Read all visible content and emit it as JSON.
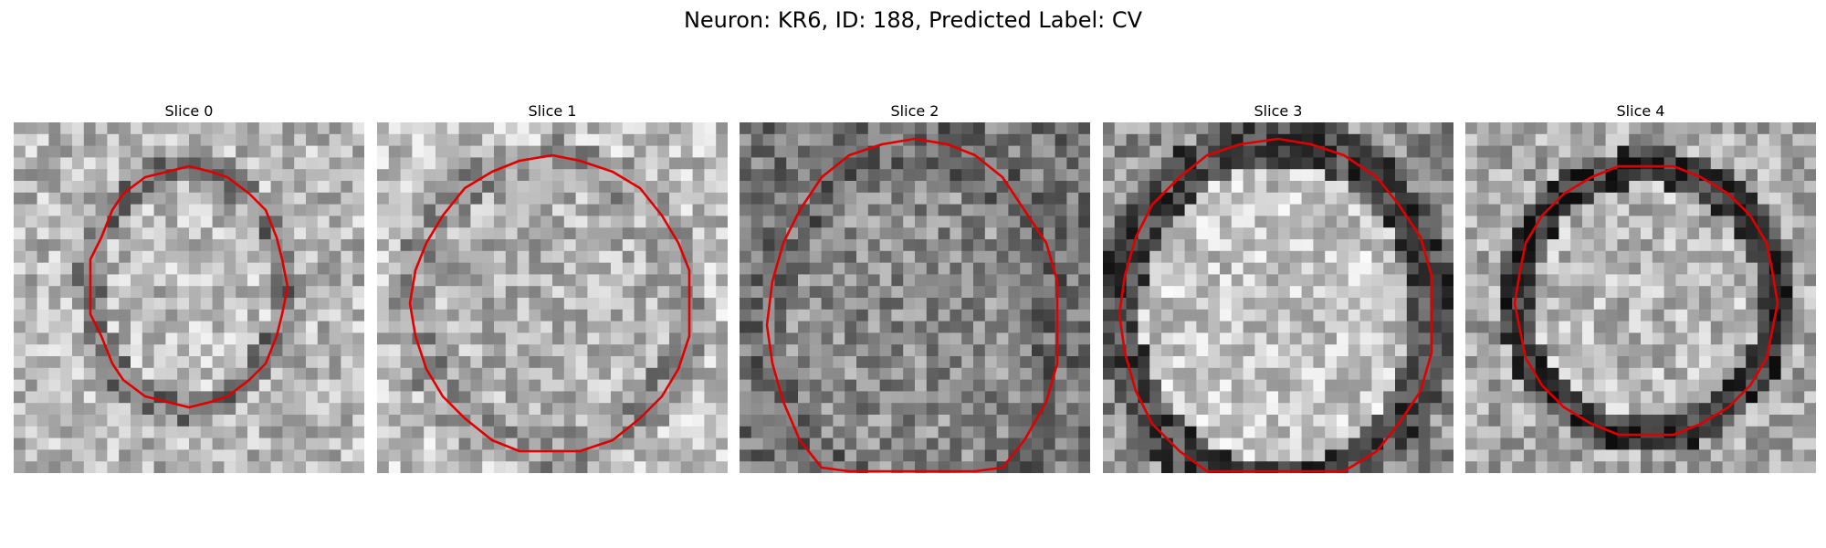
{
  "figure": {
    "title": "Neuron: KR6, ID: 188, Predicted Label: CV"
  },
  "slices": [
    {
      "title": "Slice 0",
      "seed": 11,
      "tone": "ring",
      "inner": 0.74,
      "outer": 0.72,
      "ring": 0.46
    },
    {
      "title": "Slice 1",
      "seed": 29,
      "tone": "soft",
      "inner": 0.7,
      "outer": 0.76,
      "ring": 0.58
    },
    {
      "title": "Slice 2",
      "seed": 47,
      "tone": "noisy",
      "inner": 0.55,
      "outer": 0.46,
      "ring": 0.42
    },
    {
      "title": "Slice 3",
      "seed": 63,
      "tone": "bright",
      "inner": 0.78,
      "outer": 0.56,
      "ring": 0.28
    },
    {
      "title": "Slice 4",
      "seed": 81,
      "tone": "dark-ring",
      "inner": 0.72,
      "outer": 0.66,
      "ring": 0.22
    }
  ],
  "contour_color": "#e00000"
}
